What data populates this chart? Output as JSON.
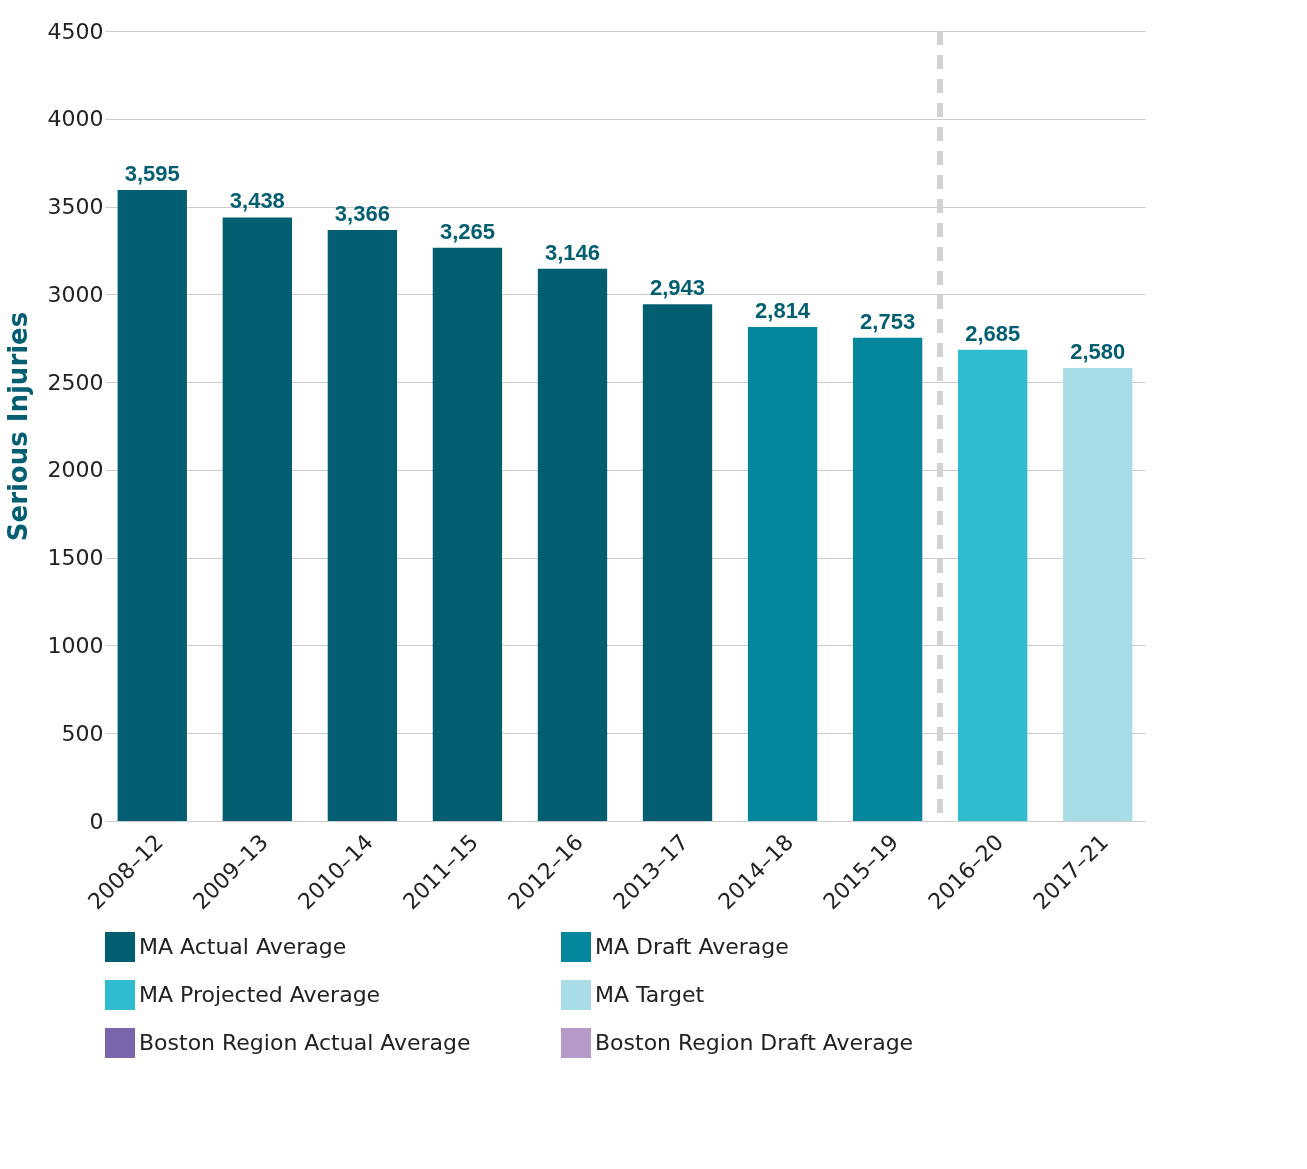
{
  "chart_data": {
    "type": "bar",
    "ylabel": "Serious Injuries",
    "categories": [
      "2008–12",
      "2009–13",
      "2010–14",
      "2011–15",
      "2012–16",
      "2013–17",
      "2014–18",
      "2015–19",
      "2016–20",
      "2017–21"
    ],
    "series": [
      {
        "name": "MA Actual Average",
        "color": "#035e72",
        "values": [
          3595,
          3438,
          3366,
          3265,
          3146,
          2943,
          null,
          null,
          null,
          null
        ],
        "value_labels": [
          "3,595",
          "3,438",
          "3,366",
          "3,265",
          "3,146",
          "2,943",
          null,
          null,
          null,
          null
        ]
      },
      {
        "name": "MA Draft Average",
        "color": "#04869c",
        "values": [
          null,
          null,
          null,
          null,
          null,
          null,
          2814,
          2753,
          null,
          null
        ],
        "value_labels": [
          null,
          null,
          null,
          null,
          null,
          null,
          "2,814",
          "2,753",
          null,
          null
        ]
      },
      {
        "name": "MA Projected Average",
        "color": "#2fbccf",
        "values": [
          null,
          null,
          null,
          null,
          null,
          null,
          null,
          null,
          2685,
          null
        ],
        "value_labels": [
          null,
          null,
          null,
          null,
          null,
          null,
          null,
          null,
          "2,685",
          null
        ]
      },
      {
        "name": "MA Target",
        "color": "#a8dde8",
        "values": [
          null,
          null,
          null,
          null,
          null,
          null,
          null,
          null,
          null,
          2580
        ],
        "value_labels": [
          null,
          null,
          null,
          null,
          null,
          null,
          null,
          null,
          null,
          "2,580"
        ]
      },
      {
        "name": "Boston Region Actual Average",
        "color": "#7b66ac",
        "values": [
          null,
          null,
          null,
          null,
          null,
          null,
          null,
          null,
          null,
          null
        ]
      },
      {
        "name": "Boston Region Draft Average",
        "color": "#b79ac9",
        "values": [
          null,
          null,
          null,
          null,
          null,
          null,
          null,
          null,
          null,
          null
        ]
      }
    ],
    "ylim": [
      0,
      4500
    ],
    "yticks": [
      0,
      500,
      1000,
      1500,
      2000,
      2500,
      3000,
      3500,
      4000,
      4500
    ],
    "grid": "y",
    "legend": "bottom",
    "ref_lines": [
      {
        "axis": "x",
        "value": "2016–20",
        "color": "#d3d3d3",
        "line_style": "dashed"
      }
    ]
  }
}
